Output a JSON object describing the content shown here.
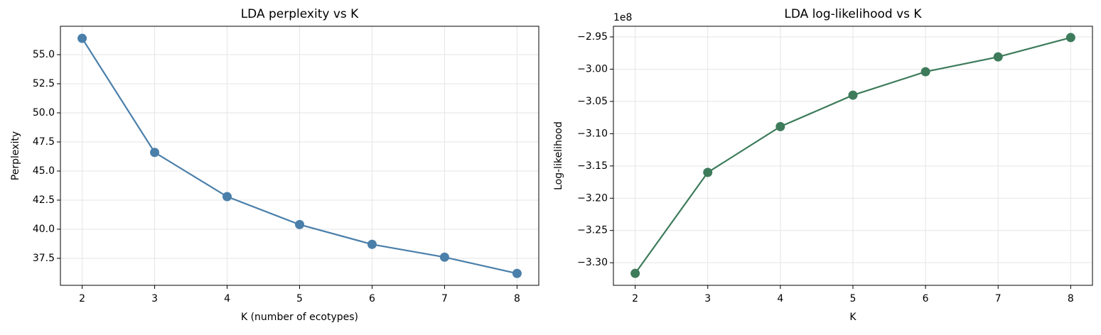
{
  "chart_data": [
    {
      "type": "line",
      "title": "LDA perplexity vs K",
      "xlabel": "K (number of ecotypes)",
      "ylabel": "Perplexity",
      "x": [
        2,
        3,
        4,
        5,
        6,
        7,
        8
      ],
      "values": [
        56.4,
        46.6,
        42.8,
        40.4,
        38.7,
        37.6,
        36.2
      ],
      "color": "#4a7faa",
      "xlim": [
        1.7,
        8.3
      ],
      "xticks": [
        2,
        3,
        4,
        5,
        6,
        7,
        8
      ],
      "ylim": [
        35.18,
        57.44
      ],
      "yticks": [
        37.5,
        {
          "value": 40,
          "label": "40.0"
        },
        42.5,
        {
          "value": 45,
          "label": "45.0"
        },
        47.5,
        {
          "value": 50,
          "label": "50.0"
        },
        52.5,
        {
          "value": 55,
          "label": "55.0"
        }
      ],
      "grid": true
    },
    {
      "type": "line",
      "title": "LDA log-likelihood vs K",
      "xlabel": "K",
      "ylabel": "Log-likelihood",
      "offset_label": "1e8",
      "x": [
        2,
        3,
        4,
        5,
        6,
        7,
        8
      ],
      "values": [
        -3.3165,
        -3.16,
        -3.089,
        -3.0403,
        -3.004,
        -2.981,
        -2.951
      ],
      "color": "#3d7b5b",
      "xlim": [
        1.7,
        8.3
      ],
      "xticks": [
        2,
        3,
        4,
        5,
        6,
        7,
        8
      ],
      "ylim": [
        -3.335,
        -2.9335
      ],
      "yticks": [
        {
          "value": -3.3,
          "label": "−3.30"
        },
        {
          "value": -3.25,
          "label": "−3.25"
        },
        {
          "value": -3.2,
          "label": "−3.20"
        },
        {
          "value": -3.15,
          "label": "−3.15"
        },
        {
          "value": -3.1,
          "label": "−3.10"
        },
        {
          "value": -3.05,
          "label": "−3.05"
        },
        {
          "value": -3.0,
          "label": "−3.00"
        },
        {
          "value": -2.95,
          "label": "−2.95"
        }
      ],
      "grid": true
    }
  ]
}
